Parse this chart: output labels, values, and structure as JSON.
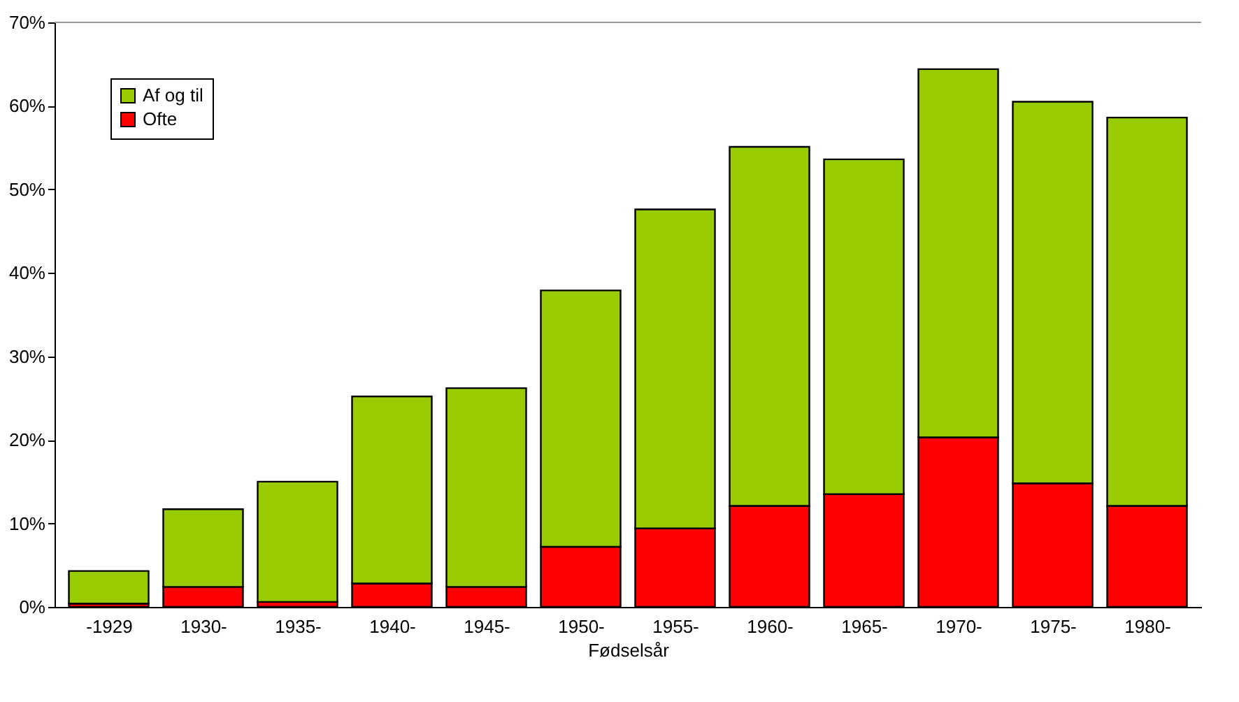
{
  "chart_data": {
    "type": "bar",
    "stacked": true,
    "xlabel": "Fødselsår",
    "categories": [
      "-1929",
      "1930-",
      "1935-",
      "1940-",
      "1945-",
      "1950-",
      "1955-",
      "1960-",
      "1965-",
      "1970-",
      "1975-",
      "1980-"
    ],
    "series": [
      {
        "name": "Ofte",
        "color": "#ff0000",
        "values": [
          0.4,
          2.4,
          0.6,
          2.8,
          2.4,
          7.2,
          9.4,
          12.1,
          13.5,
          20.3,
          14.8,
          12.1
        ]
      },
      {
        "name": "Af og til",
        "color": "#99cc00",
        "values": [
          3.9,
          9.3,
          14.4,
          22.4,
          23.8,
          30.7,
          38.2,
          43.0,
          40.1,
          44.1,
          45.7,
          46.5
        ]
      }
    ],
    "ylim": [
      0,
      70
    ],
    "yticks": [
      {
        "value": 0,
        "label": "0%"
      },
      {
        "value": 10,
        "label": "10%"
      },
      {
        "value": 20,
        "label": "20%"
      },
      {
        "value": 30,
        "label": "30%"
      },
      {
        "value": 40,
        "label": "40%"
      },
      {
        "value": 50,
        "label": "50%"
      },
      {
        "value": 60,
        "label": "60%"
      },
      {
        "value": 70,
        "label": "70%"
      }
    ],
    "grid": false,
    "legend": "top left"
  }
}
